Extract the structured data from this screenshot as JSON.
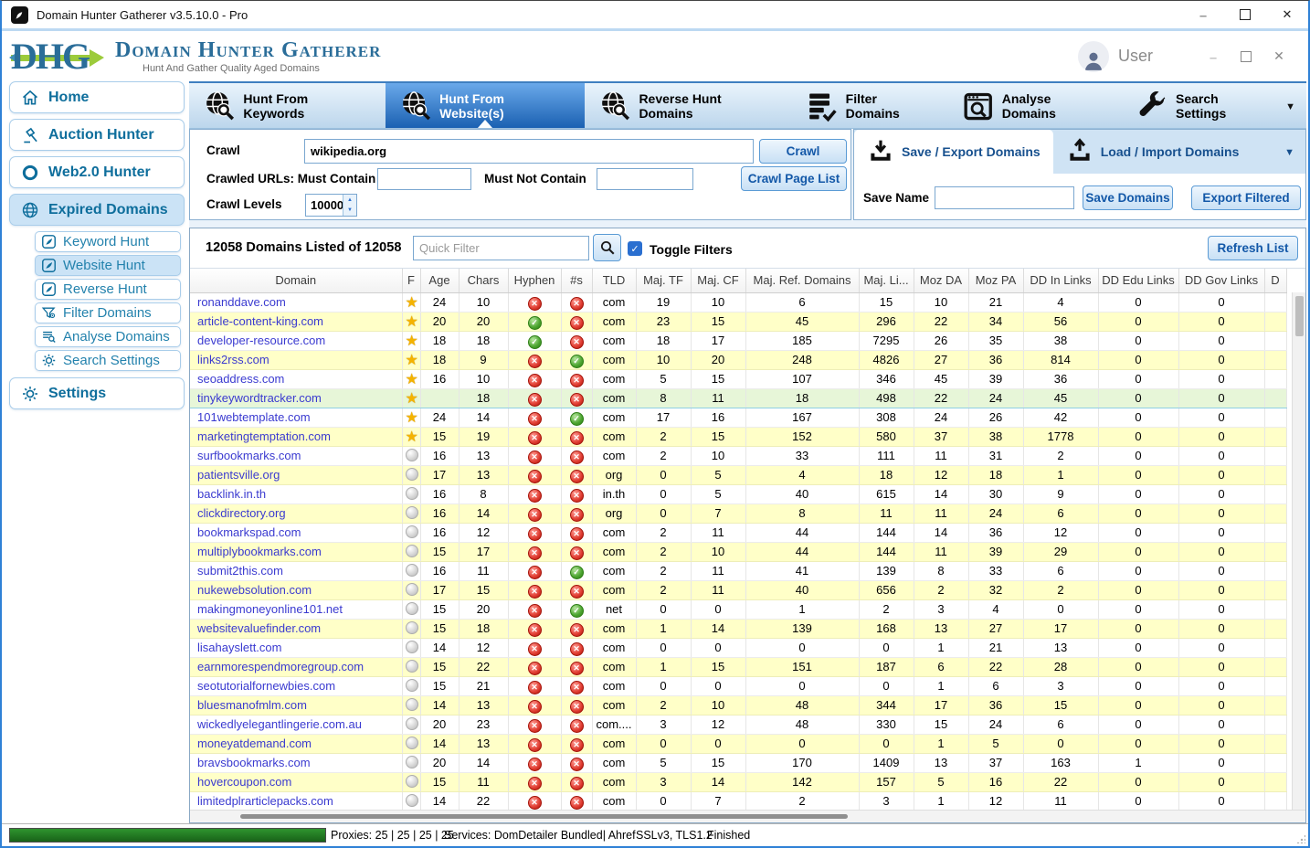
{
  "window": {
    "title": "Domain Hunter Gatherer v3.5.10.0 - Pro"
  },
  "header": {
    "logo_text": "DHG",
    "brand": "Domain Hunter Gatherer",
    "tagline": "Hunt And Gather Quality Aged Domains",
    "user_label": "User"
  },
  "sidebar": {
    "items": [
      {
        "label": "Home",
        "icon": "home-icon",
        "active": false,
        "indent": false
      },
      {
        "label": "Auction Hunter",
        "icon": "gavel-icon",
        "active": false,
        "indent": false
      },
      {
        "label": "Web2.0 Hunter",
        "icon": "ring-icon",
        "active": false,
        "indent": false
      },
      {
        "label": "Expired Domains",
        "icon": "globe-icon",
        "active": true,
        "indent": false
      },
      {
        "label": "Keyword Hunt",
        "icon": "quill-icon",
        "active": false,
        "indent": true
      },
      {
        "label": "Website Hunt",
        "icon": "quill-icon",
        "active": true,
        "indent": true
      },
      {
        "label": "Reverse Hunt",
        "icon": "quill-icon",
        "active": false,
        "indent": true
      },
      {
        "label": "Filter Domains",
        "icon": "filter-icon",
        "active": false,
        "indent": true
      },
      {
        "label": "Analyse Domains",
        "icon": "list-search-icon",
        "active": false,
        "indent": true
      },
      {
        "label": "Search Settings",
        "icon": "gear-icon",
        "active": false,
        "indent": true
      },
      {
        "label": "Settings",
        "icon": "gear-icon",
        "active": false,
        "indent": false,
        "gap": true
      }
    ]
  },
  "tabs": [
    {
      "label": "Hunt From Keywords",
      "icon": "globe-search-icon",
      "active": false
    },
    {
      "label": "Hunt From Website(s)",
      "icon": "globe-search-icon",
      "active": true
    },
    {
      "label": "Reverse Hunt Domains",
      "icon": "globe-search-icon",
      "active": false
    },
    {
      "label": "Filter Domains",
      "icon": "filter-list-icon",
      "active": false
    },
    {
      "label": "Analyse Domains",
      "icon": "analyse-icon",
      "active": false
    },
    {
      "label": "Search Settings",
      "icon": "wrench-icon",
      "active": false
    }
  ],
  "crawl": {
    "crawl_label": "Crawl",
    "crawl_value": "wikipedia.org",
    "crawl_button": "Crawl",
    "must_contain_label": "Crawled URLs: Must Contain",
    "must_contain_value": "",
    "must_not_contain_label": "Must Not Contain",
    "must_not_contain_value": "",
    "crawl_page_list_button": "Crawl Page List",
    "crawl_levels_label": "Crawl Levels",
    "crawl_levels_value": "10000"
  },
  "save_panel": {
    "save_tab": "Save / Export Domains",
    "load_tab": "Load / Import Domains",
    "save_name_label": "Save Name",
    "save_name_value": "",
    "save_domains_button": "Save Domains",
    "export_filtered_button": "Export Filtered"
  },
  "toolbar": {
    "count_text": "12058 Domains Listed of 12058",
    "quick_filter_placeholder": "Quick Filter",
    "toggle_filters_label": "Toggle Filters",
    "toggle_filters_checked": true,
    "refresh_button": "Refresh List"
  },
  "table": {
    "columns": [
      "Domain",
      "F",
      "Age",
      "Chars",
      "Hyphen",
      "#s",
      "TLD",
      "Maj. TF",
      "Maj. CF",
      "Maj. Ref. Domains",
      "Maj. Li...",
      "Moz DA",
      "Moz PA",
      "DD In Links",
      "DD Edu Links",
      "DD Gov Links",
      "D"
    ],
    "rows": [
      {
        "domain": "ronanddave.com",
        "fav": "star",
        "age": "24",
        "chars": "10",
        "hyphen": "no",
        "numbers": "no",
        "tld": "com",
        "maj_tf": "19",
        "maj_cf": "10",
        "maj_ref": "6",
        "maj_li": "15",
        "moz_da": "10",
        "moz_pa": "21",
        "dd_in": "4",
        "dd_edu": "0",
        "dd_gov": "0",
        "selected": false
      },
      {
        "domain": "article-content-king.com",
        "fav": "star",
        "age": "20",
        "chars": "20",
        "hyphen": "yes",
        "numbers": "no",
        "tld": "com",
        "maj_tf": "23",
        "maj_cf": "15",
        "maj_ref": "45",
        "maj_li": "296",
        "moz_da": "22",
        "moz_pa": "34",
        "dd_in": "56",
        "dd_edu": "0",
        "dd_gov": "0",
        "selected": false
      },
      {
        "domain": "developer-resource.com",
        "fav": "star",
        "age": "18",
        "chars": "18",
        "hyphen": "yes",
        "numbers": "no",
        "tld": "com",
        "maj_tf": "18",
        "maj_cf": "17",
        "maj_ref": "185",
        "maj_li": "7295",
        "moz_da": "26",
        "moz_pa": "35",
        "dd_in": "38",
        "dd_edu": "0",
        "dd_gov": "0",
        "selected": false
      },
      {
        "domain": "links2rss.com",
        "fav": "star",
        "age": "18",
        "chars": "9",
        "hyphen": "no",
        "numbers": "yes",
        "tld": "com",
        "maj_tf": "10",
        "maj_cf": "20",
        "maj_ref": "248",
        "maj_li": "4826",
        "moz_da": "27",
        "moz_pa": "36",
        "dd_in": "814",
        "dd_edu": "0",
        "dd_gov": "0",
        "selected": false
      },
      {
        "domain": "seoaddress.com",
        "fav": "star",
        "age": "16",
        "chars": "10",
        "hyphen": "no",
        "numbers": "no",
        "tld": "com",
        "maj_tf": "5",
        "maj_cf": "15",
        "maj_ref": "107",
        "maj_li": "346",
        "moz_da": "45",
        "moz_pa": "39",
        "dd_in": "36",
        "dd_edu": "0",
        "dd_gov": "0",
        "selected": false
      },
      {
        "domain": "tinykeywordtracker.com",
        "fav": "star",
        "age": "",
        "chars": "18",
        "hyphen": "no",
        "numbers": "no",
        "tld": "com",
        "maj_tf": "8",
        "maj_cf": "11",
        "maj_ref": "18",
        "maj_li": "498",
        "moz_da": "22",
        "moz_pa": "24",
        "dd_in": "45",
        "dd_edu": "0",
        "dd_gov": "0",
        "selected": true
      },
      {
        "domain": "101webtemplate.com",
        "fav": "star",
        "age": "24",
        "chars": "14",
        "hyphen": "no",
        "numbers": "yes",
        "tld": "com",
        "maj_tf": "17",
        "maj_cf": "16",
        "maj_ref": "167",
        "maj_li": "308",
        "moz_da": "24",
        "moz_pa": "26",
        "dd_in": "42",
        "dd_edu": "0",
        "dd_gov": "0",
        "selected": false
      },
      {
        "domain": "marketingtemptation.com",
        "fav": "star",
        "age": "15",
        "chars": "19",
        "hyphen": "no",
        "numbers": "no",
        "tld": "com",
        "maj_tf": "2",
        "maj_cf": "15",
        "maj_ref": "152",
        "maj_li": "580",
        "moz_da": "37",
        "moz_pa": "38",
        "dd_in": "1778",
        "dd_edu": "0",
        "dd_gov": "0",
        "selected": false
      },
      {
        "domain": "surfbookmarks.com",
        "fav": "circle",
        "age": "16",
        "chars": "13",
        "hyphen": "no",
        "numbers": "no",
        "tld": "com",
        "maj_tf": "2",
        "maj_cf": "10",
        "maj_ref": "33",
        "maj_li": "111",
        "moz_da": "11",
        "moz_pa": "31",
        "dd_in": "2",
        "dd_edu": "0",
        "dd_gov": "0",
        "selected": false
      },
      {
        "domain": "patientsville.org",
        "fav": "circle",
        "age": "17",
        "chars": "13",
        "hyphen": "no",
        "numbers": "no",
        "tld": "org",
        "maj_tf": "0",
        "maj_cf": "5",
        "maj_ref": "4",
        "maj_li": "18",
        "moz_da": "12",
        "moz_pa": "18",
        "dd_in": "1",
        "dd_edu": "0",
        "dd_gov": "0",
        "selected": false
      },
      {
        "domain": "backlink.in.th",
        "fav": "circle",
        "age": "16",
        "chars": "8",
        "hyphen": "no",
        "numbers": "no",
        "tld": "in.th",
        "maj_tf": "0",
        "maj_cf": "5",
        "maj_ref": "40",
        "maj_li": "615",
        "moz_da": "14",
        "moz_pa": "30",
        "dd_in": "9",
        "dd_edu": "0",
        "dd_gov": "0",
        "selected": false
      },
      {
        "domain": "clickdirectory.org",
        "fav": "circle",
        "age": "16",
        "chars": "14",
        "hyphen": "no",
        "numbers": "no",
        "tld": "org",
        "maj_tf": "0",
        "maj_cf": "7",
        "maj_ref": "8",
        "maj_li": "11",
        "moz_da": "11",
        "moz_pa": "24",
        "dd_in": "6",
        "dd_edu": "0",
        "dd_gov": "0",
        "selected": false
      },
      {
        "domain": "bookmarkspad.com",
        "fav": "circle",
        "age": "16",
        "chars": "12",
        "hyphen": "no",
        "numbers": "no",
        "tld": "com",
        "maj_tf": "2",
        "maj_cf": "11",
        "maj_ref": "44",
        "maj_li": "144",
        "moz_da": "14",
        "moz_pa": "36",
        "dd_in": "12",
        "dd_edu": "0",
        "dd_gov": "0",
        "selected": false
      },
      {
        "domain": "multiplybookmarks.com",
        "fav": "circle",
        "age": "15",
        "chars": "17",
        "hyphen": "no",
        "numbers": "no",
        "tld": "com",
        "maj_tf": "2",
        "maj_cf": "10",
        "maj_ref": "44",
        "maj_li": "144",
        "moz_da": "11",
        "moz_pa": "39",
        "dd_in": "29",
        "dd_edu": "0",
        "dd_gov": "0",
        "selected": false
      },
      {
        "domain": "submit2this.com",
        "fav": "circle",
        "age": "16",
        "chars": "11",
        "hyphen": "no",
        "numbers": "yes",
        "tld": "com",
        "maj_tf": "2",
        "maj_cf": "11",
        "maj_ref": "41",
        "maj_li": "139",
        "moz_da": "8",
        "moz_pa": "33",
        "dd_in": "6",
        "dd_edu": "0",
        "dd_gov": "0",
        "selected": false
      },
      {
        "domain": "nukewebsolution.com",
        "fav": "circle",
        "age": "17",
        "chars": "15",
        "hyphen": "no",
        "numbers": "no",
        "tld": "com",
        "maj_tf": "2",
        "maj_cf": "11",
        "maj_ref": "40",
        "maj_li": "656",
        "moz_da": "2",
        "moz_pa": "32",
        "dd_in": "2",
        "dd_edu": "0",
        "dd_gov": "0",
        "selected": false
      },
      {
        "domain": "makingmoneyonline101.net",
        "fav": "circle",
        "age": "15",
        "chars": "20",
        "hyphen": "no",
        "numbers": "yes",
        "tld": "net",
        "maj_tf": "0",
        "maj_cf": "0",
        "maj_ref": "1",
        "maj_li": "2",
        "moz_da": "3",
        "moz_pa": "4",
        "dd_in": "0",
        "dd_edu": "0",
        "dd_gov": "0",
        "selected": false
      },
      {
        "domain": "websitevaluefinder.com",
        "fav": "circle",
        "age": "15",
        "chars": "18",
        "hyphen": "no",
        "numbers": "no",
        "tld": "com",
        "maj_tf": "1",
        "maj_cf": "14",
        "maj_ref": "139",
        "maj_li": "168",
        "moz_da": "13",
        "moz_pa": "27",
        "dd_in": "17",
        "dd_edu": "0",
        "dd_gov": "0",
        "selected": false
      },
      {
        "domain": "lisahayslett.com",
        "fav": "circle",
        "age": "14",
        "chars": "12",
        "hyphen": "no",
        "numbers": "no",
        "tld": "com",
        "maj_tf": "0",
        "maj_cf": "0",
        "maj_ref": "0",
        "maj_li": "0",
        "moz_da": "1",
        "moz_pa": "21",
        "dd_in": "13",
        "dd_edu": "0",
        "dd_gov": "0",
        "selected": false
      },
      {
        "domain": "earnmorespendmoregroup.com",
        "fav": "circle",
        "age": "15",
        "chars": "22",
        "hyphen": "no",
        "numbers": "no",
        "tld": "com",
        "maj_tf": "1",
        "maj_cf": "15",
        "maj_ref": "151",
        "maj_li": "187",
        "moz_da": "6",
        "moz_pa": "22",
        "dd_in": "28",
        "dd_edu": "0",
        "dd_gov": "0",
        "selected": false
      },
      {
        "domain": "seotutorialfornewbies.com",
        "fav": "circle",
        "age": "15",
        "chars": "21",
        "hyphen": "no",
        "numbers": "no",
        "tld": "com",
        "maj_tf": "0",
        "maj_cf": "0",
        "maj_ref": "0",
        "maj_li": "0",
        "moz_da": "1",
        "moz_pa": "6",
        "dd_in": "3",
        "dd_edu": "0",
        "dd_gov": "0",
        "selected": false
      },
      {
        "domain": "bluesmanofmlm.com",
        "fav": "circle",
        "age": "14",
        "chars": "13",
        "hyphen": "no",
        "numbers": "no",
        "tld": "com",
        "maj_tf": "2",
        "maj_cf": "10",
        "maj_ref": "48",
        "maj_li": "344",
        "moz_da": "17",
        "moz_pa": "36",
        "dd_in": "15",
        "dd_edu": "0",
        "dd_gov": "0",
        "selected": false
      },
      {
        "domain": "wickedlyelegantlingerie.com.au",
        "fav": "circle",
        "age": "20",
        "chars": "23",
        "hyphen": "no",
        "numbers": "no",
        "tld": "com....",
        "maj_tf": "3",
        "maj_cf": "12",
        "maj_ref": "48",
        "maj_li": "330",
        "moz_da": "15",
        "moz_pa": "24",
        "dd_in": "6",
        "dd_edu": "0",
        "dd_gov": "0",
        "selected": false
      },
      {
        "domain": "moneyatdemand.com",
        "fav": "circle",
        "age": "14",
        "chars": "13",
        "hyphen": "no",
        "numbers": "no",
        "tld": "com",
        "maj_tf": "0",
        "maj_cf": "0",
        "maj_ref": "0",
        "maj_li": "0",
        "moz_da": "1",
        "moz_pa": "5",
        "dd_in": "0",
        "dd_edu": "0",
        "dd_gov": "0",
        "selected": false
      },
      {
        "domain": "bravsbookmarks.com",
        "fav": "circle",
        "age": "20",
        "chars": "14",
        "hyphen": "no",
        "numbers": "no",
        "tld": "com",
        "maj_tf": "5",
        "maj_cf": "15",
        "maj_ref": "170",
        "maj_li": "1409",
        "moz_da": "13",
        "moz_pa": "37",
        "dd_in": "163",
        "dd_edu": "1",
        "dd_gov": "0",
        "selected": false
      },
      {
        "domain": "hovercoupon.com",
        "fav": "circle",
        "age": "15",
        "chars": "11",
        "hyphen": "no",
        "numbers": "no",
        "tld": "com",
        "maj_tf": "3",
        "maj_cf": "14",
        "maj_ref": "142",
        "maj_li": "157",
        "moz_da": "5",
        "moz_pa": "16",
        "dd_in": "22",
        "dd_edu": "0",
        "dd_gov": "0",
        "selected": false
      },
      {
        "domain": "limitedplrarticlepacks.com",
        "fav": "circle",
        "age": "14",
        "chars": "22",
        "hyphen": "no",
        "numbers": "no",
        "tld": "com",
        "maj_tf": "0",
        "maj_cf": "7",
        "maj_ref": "2",
        "maj_li": "3",
        "moz_da": "1",
        "moz_pa": "12",
        "dd_in": "11",
        "dd_edu": "0",
        "dd_gov": "0",
        "selected": false
      }
    ]
  },
  "statusbar": {
    "proxies": "Proxies: 25 | 25 | 25 | 25",
    "services": "Services: DomDetailer Bundled| Ahref",
    "ssl": "SSLv3, TLS1.2",
    "status": "Finished"
  }
}
